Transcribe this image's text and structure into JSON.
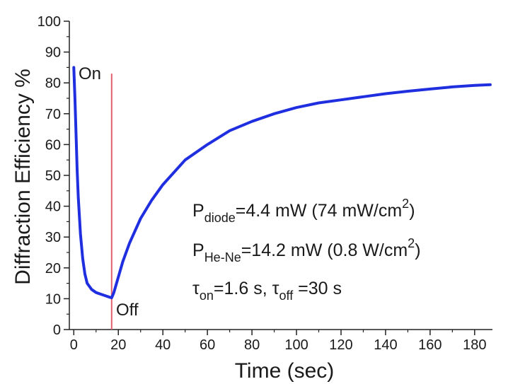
{
  "chart_data": {
    "type": "line",
    "xlabel": "Time (sec)",
    "ylabel": "Diffraction Efficiency %",
    "xlim": [
      -2,
      188
    ],
    "ylim": [
      0,
      100
    ],
    "x_ticks": [
      0,
      20,
      40,
      60,
      80,
      100,
      120,
      140,
      160,
      180
    ],
    "y_ticks": [
      0,
      10,
      20,
      30,
      40,
      50,
      60,
      70,
      80,
      90,
      100
    ],
    "series": [
      {
        "color": "#1f2fe0",
        "x": [
          0,
          0.5,
          1,
          1.5,
          2,
          3,
          4,
          5,
          6,
          8,
          10,
          12,
          14,
          16,
          17,
          18,
          20,
          22,
          25,
          30,
          35,
          40,
          50,
          60,
          70,
          80,
          90,
          100,
          110,
          120,
          130,
          140,
          150,
          160,
          170,
          180,
          187
        ],
        "y": [
          85,
          75,
          64,
          52,
          43,
          31,
          23,
          18,
          15,
          13,
          12,
          11.5,
          11,
          10.5,
          10.3,
          12,
          17,
          22,
          28,
          36,
          42,
          47,
          55,
          60,
          64.5,
          67.5,
          70,
          72,
          73.5,
          74.5,
          75.5,
          76.5,
          77.3,
          78,
          78.7,
          79.2,
          79.4
        ]
      }
    ],
    "vline": {
      "x": 17,
      "color": "#e06070"
    },
    "markers": [
      {
        "label": "On"
      },
      {
        "label": "Off"
      }
    ],
    "annotations": [
      {
        "main": "P",
        "sub": "diode",
        "rest": "=4.4 mW (74 mW/cm",
        "sup": "2",
        "tail": ")"
      },
      {
        "main": "P",
        "sub": "He-Ne",
        "rest": "=14.2 mW (0.8 W/cm",
        "sup": "2",
        "tail": ")"
      }
    ],
    "tau_note": {
      "sym": "τ",
      "sub1": "on",
      "mid": "=1.6 s, ",
      "sym2": "τ",
      "sub2": "off",
      "end": " =30 s"
    }
  }
}
